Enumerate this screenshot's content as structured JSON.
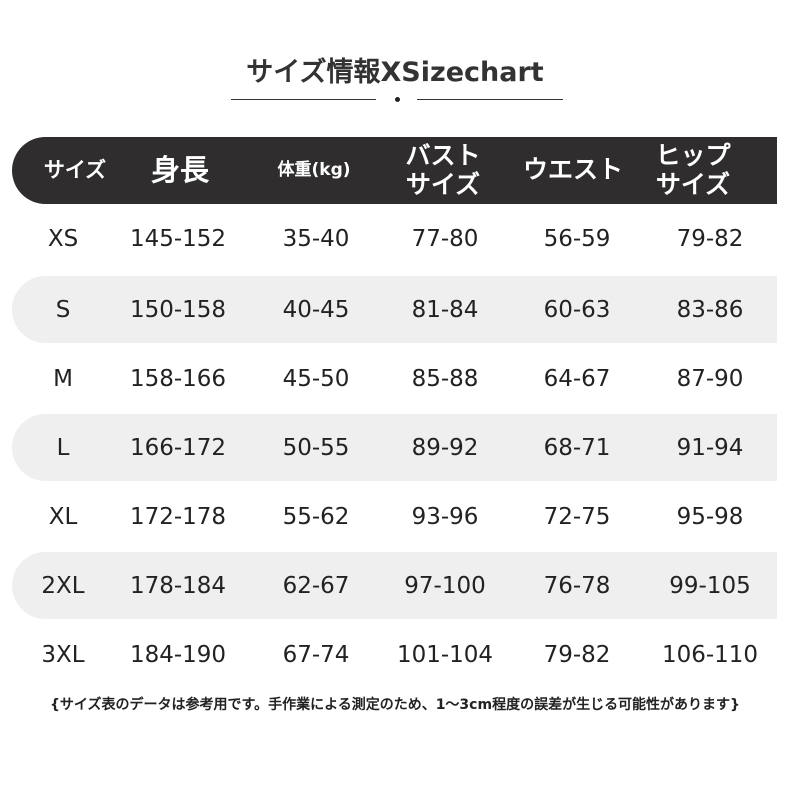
{
  "title": "サイズ情報XSizechart",
  "header": {
    "columns": [
      "サイズ",
      "身長",
      "体重(kg)",
      "バスト\nサイズ",
      "ウエスト",
      "ヒップ\nサイズ"
    ]
  },
  "rows": [
    [
      "XS",
      "145-152",
      "35-40",
      "77-80",
      "56-59",
      "79-82"
    ],
    [
      "S",
      "150-158",
      "40-45",
      "81-84",
      "60-63",
      "83-86"
    ],
    [
      "M",
      "158-166",
      "45-50",
      "85-88",
      "64-67",
      "87-90"
    ],
    [
      "L",
      "166-172",
      "50-55",
      "89-92",
      "68-71",
      "91-94"
    ],
    [
      "XL",
      "172-178",
      "55-62",
      "93-96",
      "72-75",
      "95-98"
    ],
    [
      "2XL",
      "178-184",
      "62-67",
      "97-100",
      "76-78",
      "99-105"
    ],
    [
      "3XL",
      "184-190",
      "67-74",
      "101-104",
      "79-82",
      "106-110"
    ]
  ],
  "note": "{サイズ表のデータは参考用です。手作業による測定のため、1～3cm程度の誤差が生じる可能性があります}",
  "colors": {
    "header_bg": "#2f2d2d",
    "band_bg": "#efefef",
    "text": "#222222"
  }
}
